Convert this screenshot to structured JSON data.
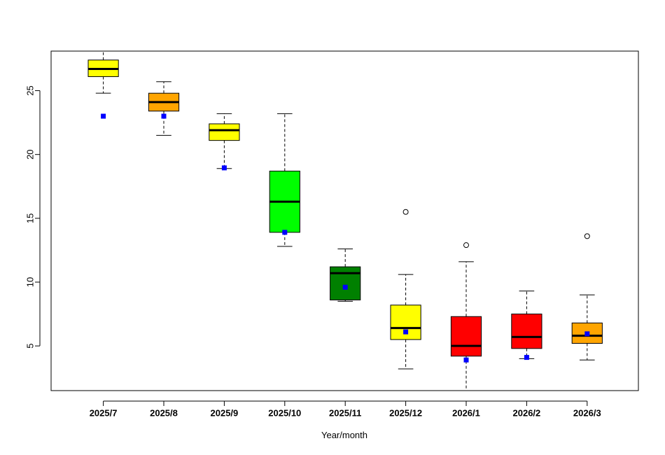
{
  "chart_data": {
    "type": "box",
    "title": "",
    "xlabel": "Year/month",
    "ylabel": "",
    "ylim": [
      1.5,
      28.1
    ],
    "y_ticks": [
      5,
      10,
      15,
      20,
      25
    ],
    "grid": false,
    "legend": "none",
    "categories": [
      "2025/7",
      "2025/8",
      "2025/9",
      "2025/10",
      "2025/11",
      "2025/12",
      "2026/1",
      "2026/2",
      "2026/3"
    ],
    "boxes": [
      {
        "whisker_low": 24.8,
        "q1": 26.1,
        "median": 26.7,
        "q3": 27.4,
        "whisker_high": 28.3,
        "outliers": [],
        "marker": 23.0,
        "fill": "#FFFF00"
      },
      {
        "whisker_low": 21.5,
        "q1": 23.4,
        "median": 24.1,
        "q3": 24.8,
        "whisker_high": 25.7,
        "outliers": [],
        "marker": 23.0,
        "fill": "#FFA500"
      },
      {
        "whisker_low": 18.9,
        "q1": 21.1,
        "median": 21.9,
        "q3": 22.4,
        "whisker_high": 23.2,
        "outliers": [],
        "marker": 18.95,
        "fill": "#FFFF00"
      },
      {
        "whisker_low": 12.8,
        "q1": 13.9,
        "median": 16.3,
        "q3": 18.7,
        "whisker_high": 23.2,
        "outliers": [],
        "marker": 13.9,
        "fill": "#00FF00"
      },
      {
        "whisker_low": 8.5,
        "q1": 8.6,
        "median": 10.7,
        "q3": 11.2,
        "whisker_high": 12.6,
        "outliers": [],
        "marker": 9.6,
        "fill": "#008000"
      },
      {
        "whisker_low": 3.2,
        "q1": 5.5,
        "median": 6.4,
        "q3": 8.2,
        "whisker_high": 10.6,
        "outliers": [
          15.5
        ],
        "marker": 6.1,
        "fill": "#FFFF00"
      },
      {
        "whisker_low": 1.3,
        "q1": 4.2,
        "median": 5.0,
        "q3": 7.3,
        "whisker_high": 11.6,
        "outliers": [
          12.9
        ],
        "marker": 3.9,
        "fill": "#FF0000"
      },
      {
        "whisker_low": 4.0,
        "q1": 4.8,
        "median": 5.7,
        "q3": 7.5,
        "whisker_high": 9.3,
        "outliers": [],
        "marker": 4.1,
        "fill": "#FF0000"
      },
      {
        "whisker_low": 3.9,
        "q1": 5.2,
        "median": 5.8,
        "q3": 6.8,
        "whisker_high": 9.0,
        "outliers": [
          13.6
        ],
        "marker": 5.95,
        "fill": "#FFA500"
      }
    ],
    "marker_color": "#0000FF",
    "median_color": "#000000"
  }
}
